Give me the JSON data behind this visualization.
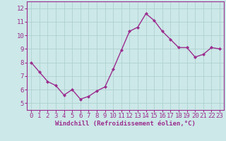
{
  "x": [
    0,
    1,
    2,
    3,
    4,
    5,
    6,
    7,
    8,
    9,
    10,
    11,
    12,
    13,
    14,
    15,
    16,
    17,
    18,
    19,
    20,
    21,
    22,
    23
  ],
  "y": [
    8.0,
    7.3,
    6.6,
    6.3,
    5.6,
    6.0,
    5.3,
    5.5,
    5.9,
    6.2,
    7.5,
    8.9,
    10.3,
    10.6,
    11.6,
    11.1,
    10.3,
    9.7,
    9.1,
    9.1,
    8.4,
    8.6,
    9.1,
    9.0
  ],
  "line_color": "#9b2d8e",
  "marker": "D",
  "marker_size": 2.0,
  "bg_color": "#cce8e8",
  "grid_color": "#aacccc",
  "xlabel": "Windchill (Refroidissement éolien,°C)",
  "xlabel_color": "#9b2d8e",
  "tick_color": "#9b2d8e",
  "ylim": [
    4.5,
    12.5
  ],
  "xlim": [
    -0.5,
    23.5
  ],
  "yticks": [
    5,
    6,
    7,
    8,
    9,
    10,
    11,
    12
  ],
  "xticks": [
    0,
    1,
    2,
    3,
    4,
    5,
    6,
    7,
    8,
    9,
    10,
    11,
    12,
    13,
    14,
    15,
    16,
    17,
    18,
    19,
    20,
    21,
    22,
    23
  ],
  "spine_color": "#9b2d8e",
  "linewidth": 1.0,
  "tick_fontsize": 6.5,
  "xlabel_fontsize": 6.5
}
